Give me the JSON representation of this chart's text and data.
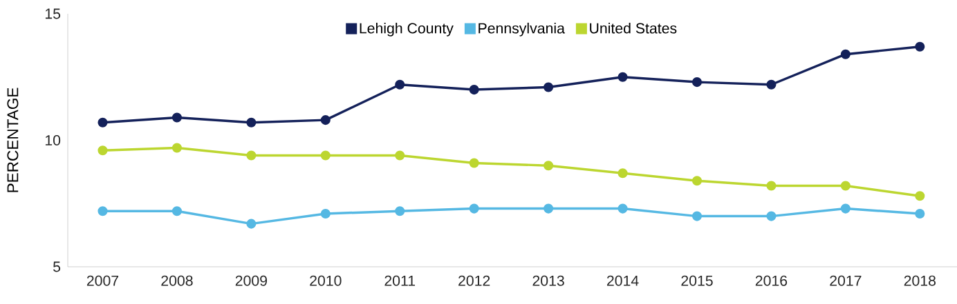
{
  "chart_data": {
    "type": "line",
    "ylabel": "PERCENTAGE",
    "categories": [
      "2007",
      "2008",
      "2009",
      "2010",
      "2011",
      "2012",
      "2013",
      "2014",
      "2015",
      "2016",
      "2017",
      "2018"
    ],
    "ylim": [
      5,
      15
    ],
    "yticks": [
      5,
      10,
      15
    ],
    "legend": "top",
    "marker": "circle",
    "series": [
      {
        "name": "Lehigh County",
        "color": "#14215a",
        "values": [
          10.7,
          10.9,
          10.7,
          10.8,
          12.2,
          12.0,
          12.1,
          12.5,
          12.3,
          12.2,
          13.4,
          13.7
        ]
      },
      {
        "name": "Pennsylvania",
        "color": "#55b8e3",
        "values": [
          7.2,
          7.2,
          6.7,
          7.1,
          7.2,
          7.3,
          7.3,
          7.3,
          7.0,
          7.0,
          7.3,
          7.1
        ]
      },
      {
        "name": "United States",
        "color": "#bcd630",
        "values": [
          9.6,
          9.7,
          9.4,
          9.4,
          9.4,
          9.1,
          9.0,
          8.7,
          8.4,
          8.2,
          8.2,
          7.8
        ]
      }
    ]
  }
}
